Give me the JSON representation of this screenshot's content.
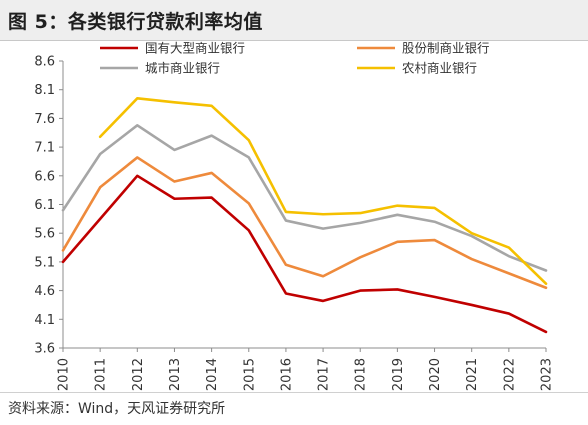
{
  "header": {
    "title": "图 5：各类银行贷款利率均值"
  },
  "footer": {
    "source": "资料来源：Wind，天风证券研究所"
  },
  "chart_data": {
    "type": "line",
    "title": "图 5：各类银行贷款利率均值",
    "xlabel": "",
    "ylabel": "",
    "x": [
      "2010",
      "2011",
      "2012",
      "2013",
      "2014",
      "2015",
      "2016",
      "2017",
      "2018",
      "2019",
      "2020",
      "2021",
      "2022",
      "2023"
    ],
    "ylim": [
      3.6,
      8.6
    ],
    "yticks": [
      "8.6",
      "8.1",
      "7.6",
      "7.1",
      "6.6",
      "6.1",
      "5.6",
      "5.1",
      "4.6",
      "4.1",
      "3.6"
    ],
    "grid": false,
    "legend_position": "top",
    "series": [
      {
        "name": "国有大型商业银行",
        "color": "#c00000",
        "values": [
          5.1,
          5.85,
          6.6,
          6.2,
          6.22,
          5.65,
          4.55,
          4.42,
          4.6,
          4.62,
          4.49,
          4.35,
          4.2,
          3.88
        ]
      },
      {
        "name": "股份制商业银行",
        "color": "#ee8a3c",
        "values": [
          5.3,
          6.4,
          6.92,
          6.5,
          6.65,
          6.12,
          5.05,
          4.85,
          5.18,
          5.45,
          5.48,
          5.15,
          4.9,
          4.65
        ]
      },
      {
        "name": "城市商业银行",
        "color": "#a6a6a6",
        "values": [
          6.0,
          6.98,
          7.48,
          7.05,
          7.3,
          6.92,
          5.82,
          5.68,
          5.78,
          5.92,
          5.8,
          5.55,
          5.2,
          4.95
        ]
      },
      {
        "name": "农村商业银行",
        "color": "#f5c000",
        "values": [
          null,
          7.28,
          7.95,
          7.88,
          7.82,
          7.22,
          5.97,
          5.93,
          5.95,
          6.08,
          6.04,
          5.6,
          5.35,
          4.72
        ]
      }
    ]
  }
}
